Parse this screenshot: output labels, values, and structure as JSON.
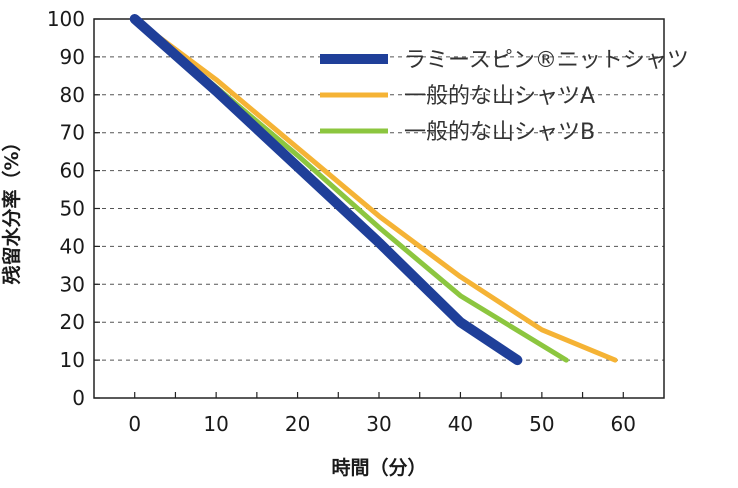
{
  "chart_data": {
    "type": "line",
    "xlabel": "時間（分）",
    "ylabel": "残留水分率（%）",
    "xlim": [
      -5,
      65
    ],
    "ylim": [
      0,
      100
    ],
    "x_ticks": [
      "0",
      "10",
      "20",
      "30",
      "40",
      "50",
      "60"
    ],
    "y_ticks": [
      "0",
      "10",
      "20",
      "30",
      "40",
      "50",
      "60",
      "70",
      "80",
      "90",
      "100"
    ],
    "grid": "dashed horizontal",
    "legend_position": "top-right",
    "series": [
      {
        "name": "ラミースピン®ニットシャツ",
        "color": "#1f3f99",
        "x": [
          0,
          10,
          20,
          30,
          40,
          47
        ],
        "y": [
          100,
          81,
          61,
          41,
          20,
          10
        ]
      },
      {
        "name": "一般的な山シャツA",
        "color": "#f5b335",
        "x": [
          0,
          10,
          20,
          30,
          40,
          50,
          59
        ],
        "y": [
          100,
          84,
          66,
          48,
          32,
          18,
          10
        ]
      },
      {
        "name": "一般的な山シャツB",
        "color": "#8cc63f",
        "x": [
          0,
          10,
          20,
          30,
          40,
          53
        ],
        "y": [
          100,
          82,
          64,
          45,
          27,
          10
        ]
      }
    ]
  }
}
